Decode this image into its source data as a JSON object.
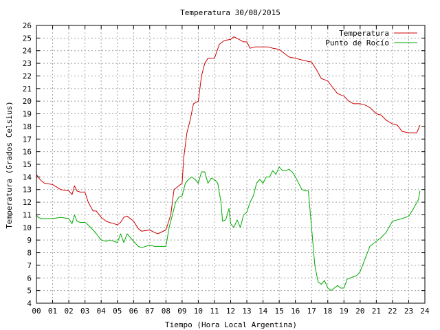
{
  "chart_data": {
    "type": "line",
    "title": "Temperatura 30/08/2015",
    "xlabel": "Tiempo (Hora Local Argentina)",
    "ylabel": "Temperatura (Grados Celsius)",
    "xlim": [
      0,
      24
    ],
    "ylim": [
      4,
      26
    ],
    "x_ticks": [
      "00",
      "01",
      "02",
      "03",
      "04",
      "05",
      "06",
      "07",
      "08",
      "09",
      "10",
      "11",
      "12",
      "13",
      "14",
      "15",
      "16",
      "17",
      "18",
      "19",
      "20",
      "21",
      "22",
      "23",
      "24"
    ],
    "y_ticks": [
      4,
      5,
      6,
      7,
      8,
      9,
      10,
      11,
      12,
      13,
      14,
      15,
      16,
      17,
      18,
      19,
      20,
      21,
      22,
      23,
      24,
      25,
      26
    ],
    "grid": true,
    "legend_position": "top-right",
    "series": [
      {
        "name": "Temperatura",
        "color": "#cc0000",
        "x": [
          0,
          0.1,
          0.3,
          0.5,
          1,
          1.5,
          2,
          2.2,
          2.35,
          2.5,
          2.7,
          3,
          3.2,
          3.5,
          3.7,
          4,
          4.3,
          4.5,
          4.8,
          5,
          5.2,
          5.4,
          5.6,
          6,
          6.3,
          6.5,
          7,
          7.3,
          7.5,
          8,
          8.3,
          8.5,
          8.7,
          9,
          9.1,
          9.3,
          9.5,
          9.7,
          10,
          10.2,
          10.4,
          10.6,
          10.8,
          11,
          11.3,
          11.6,
          12,
          12.2,
          12.5,
          12.8,
          13,
          13.2,
          13.5,
          13.8,
          14,
          14.3,
          14.6,
          15,
          15.3,
          15.6,
          16,
          16.3,
          16.6,
          17,
          17.3,
          17.6,
          18,
          18.3,
          18.6,
          19,
          19.3,
          19.6,
          20,
          20.3,
          20.6,
          21,
          21.3,
          21.6,
          22,
          22.3,
          22.6,
          23,
          23.3,
          23.5,
          23.6,
          23.7
        ],
        "values": [
          14.2,
          14,
          13.7,
          13.5,
          13.4,
          13,
          12.9,
          12.6,
          13.3,
          12.9,
          12.8,
          12.8,
          12.0,
          11.3,
          11.3,
          10.8,
          10.5,
          10.4,
          10.3,
          10.2,
          10.4,
          10.8,
          10.9,
          10.5,
          9.9,
          9.7,
          9.8,
          9.6,
          9.5,
          9.8,
          11.0,
          13.0,
          13.2,
          13.5,
          15.5,
          17.5,
          18.5,
          19.8,
          20.0,
          22.0,
          23.0,
          23.4,
          23.4,
          23.4,
          24.5,
          24.8,
          24.9,
          25.1,
          24.9,
          24.7,
          24.7,
          24.2,
          24.3,
          24.3,
          24.3,
          24.3,
          24.2,
          24.1,
          23.8,
          23.5,
          23.4,
          23.3,
          23.2,
          23.1,
          22.5,
          21.8,
          21.6,
          21.1,
          20.6,
          20.4,
          20.0,
          19.8,
          19.8,
          19.7,
          19.5,
          19.0,
          18.9,
          18.5,
          18.2,
          18.1,
          17.6,
          17.5,
          17.5,
          17.5,
          17.8,
          18.1
        ]
      },
      {
        "name": "Punto de Rocío",
        "color": "#00aa00",
        "x": [
          0,
          0.1,
          0.3,
          0.5,
          1,
          1.5,
          2,
          2.2,
          2.35,
          2.5,
          2.7,
          3,
          3.2,
          3.5,
          3.7,
          4,
          4.3,
          4.5,
          4.8,
          5,
          5.2,
          5.4,
          5.6,
          6,
          6.3,
          6.5,
          7,
          7.3,
          7.5,
          8,
          8.2,
          8.4,
          8.6,
          8.8,
          9,
          9.2,
          9.4,
          9.6,
          9.8,
          10,
          10.2,
          10.4,
          10.6,
          10.8,
          11,
          11.2,
          11.4,
          11.5,
          11.7,
          11.9,
          12,
          12.2,
          12.4,
          12.6,
          12.8,
          13,
          13.2,
          13.4,
          13.6,
          13.8,
          14,
          14.2,
          14.4,
          14.6,
          14.8,
          15,
          15.2,
          15.4,
          15.6,
          15.8,
          16,
          16.2,
          16.4,
          16.6,
          16.8,
          17,
          17.2,
          17.4,
          17.6,
          17.8,
          18,
          18.2,
          18.4,
          18.6,
          18.8,
          19,
          19.2,
          19.4,
          19.6,
          19.8,
          20,
          20.3,
          20.6,
          21,
          21.3,
          21.6,
          22,
          22.3,
          22.6,
          23,
          23.3,
          23.6,
          23.7
        ],
        "values": [
          11.0,
          10.8,
          10.7,
          10.7,
          10.7,
          10.8,
          10.7,
          10.3,
          11.0,
          10.5,
          10.4,
          10.4,
          10.2,
          9.8,
          9.5,
          9.0,
          8.9,
          9.0,
          8.9,
          8.8,
          9.5,
          8.8,
          9.5,
          8.9,
          8.5,
          8.4,
          8.6,
          8.5,
          8.5,
          8.5,
          10.0,
          11.0,
          12.0,
          12.4,
          12.5,
          13.5,
          13.8,
          14.0,
          13.8,
          13.5,
          14.4,
          14.4,
          13.5,
          13.9,
          13.8,
          13.5,
          12.0,
          10.5,
          10.6,
          11.5,
          10.3,
          10.0,
          10.6,
          10.0,
          11.0,
          11.2,
          12.0,
          12.5,
          13.5,
          13.8,
          13.5,
          14.0,
          14.0,
          14.5,
          14.2,
          14.8,
          14.5,
          14.5,
          14.6,
          14.4,
          14.0,
          13.5,
          13.0,
          12.9,
          12.9,
          10.0,
          7.0,
          5.7,
          5.5,
          5.8,
          5.2,
          5.0,
          5.2,
          5.4,
          5.2,
          5.2,
          5.9,
          6.0,
          6.1,
          6.2,
          6.5,
          7.5,
          8.5,
          8.9,
          9.2,
          9.6,
          10.5,
          10.6,
          10.7,
          10.9,
          11.5,
          12.2,
          12.9
        ]
      }
    ]
  }
}
